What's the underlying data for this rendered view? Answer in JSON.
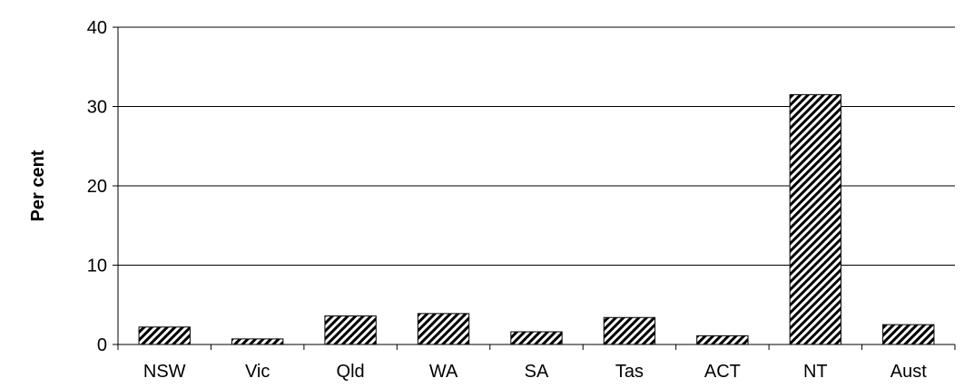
{
  "chart_data": {
    "type": "bar",
    "categories": [
      "NSW",
      "Vic",
      "Qld",
      "WA",
      "SA",
      "Tas",
      "ACT",
      "NT",
      "Aust"
    ],
    "values": [
      2.2,
      0.7,
      3.6,
      3.9,
      1.6,
      3.4,
      1.1,
      31.5,
      2.5
    ],
    "title": "",
    "xlabel": "",
    "ylabel": "Per cent",
    "ylim": [
      0,
      40
    ],
    "yticks": [
      0,
      10,
      20,
      30,
      40
    ],
    "grid": true,
    "legend": "none",
    "colors": {
      "bar_fill": "#ffffff",
      "bar_hatch": "#000000",
      "bar_stroke": "#000000",
      "grid": "#000000",
      "axis": "#000000"
    }
  }
}
